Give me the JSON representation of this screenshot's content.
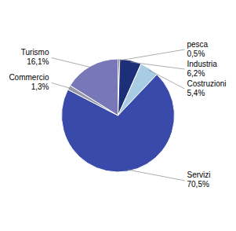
{
  "chart_data": {
    "type": "pie",
    "categories": [
      "pesca",
      "Industria",
      "Costruzioni",
      "Servizi",
      "Commercio",
      "Turismo"
    ],
    "values": [
      0.5,
      6.2,
      5.4,
      70.5,
      1.3,
      16.1
    ],
    "value_labels": [
      "0,5%",
      "6,2%",
      "5,4%",
      "70,5%",
      "1,3%",
      "16,1%"
    ],
    "colors": [
      "#6a6a8a",
      "#1e2f7a",
      "#a8cce4",
      "#3a4aaa",
      "#9898a8",
      "#7878b8"
    ],
    "data_labels": true
  }
}
